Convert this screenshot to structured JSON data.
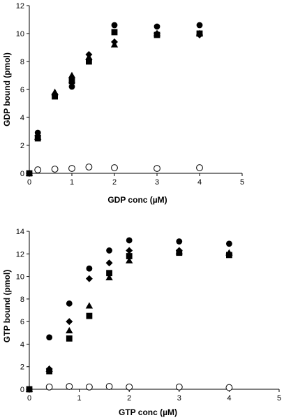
{
  "chart_data": [
    {
      "type": "scatter",
      "xlabel": "GDP conc (µM)",
      "ylabel": "GDP bound (pmol)",
      "xlim": [
        0,
        5
      ],
      "ylim": [
        0,
        12
      ],
      "xticks": [
        0,
        1,
        2,
        3,
        4,
        5
      ],
      "yticks": [
        0,
        2,
        4,
        6,
        8,
        10,
        12
      ],
      "grid": false,
      "series": [
        {
          "marker": "filled-circle",
          "color": "#000000",
          "x": [
            0,
            0.2,
            0.6,
            1.0,
            1.4,
            2.0,
            3.0,
            4.0
          ],
          "y": [
            0,
            2.9,
            5.6,
            6.2,
            8.1,
            10.6,
            10.5,
            10.6
          ]
        },
        {
          "marker": "filled-diamond",
          "color": "#000000",
          "x": [
            0,
            0.2,
            0.6,
            1.0,
            1.4,
            2.0,
            3.0,
            4.0
          ],
          "y": [
            0,
            2.7,
            5.6,
            6.5,
            8.5,
            9.4,
            10.0,
            9.9
          ]
        },
        {
          "marker": "filled-triangle",
          "color": "#000000",
          "x": [
            0,
            0.2,
            0.6,
            1.0,
            1.4,
            2.0,
            3.0,
            4.0
          ],
          "y": [
            0,
            2.6,
            5.8,
            7.0,
            8.3,
            9.2,
            10.0,
            10.0
          ]
        },
        {
          "marker": "filled-square",
          "color": "#000000",
          "x": [
            0,
            0.2,
            0.6,
            1.0,
            1.4,
            2.0,
            3.0,
            4.0
          ],
          "y": [
            0,
            2.5,
            5.5,
            6.6,
            8.0,
            10.1,
            9.9,
            10.0
          ]
        },
        {
          "marker": "open-circle",
          "color": "#000000",
          "x": [
            0.2,
            0.6,
            1.0,
            1.4,
            2.0,
            3.0,
            4.0
          ],
          "y": [
            0.25,
            0.3,
            0.35,
            0.45,
            0.4,
            0.35,
            0.4
          ]
        }
      ]
    },
    {
      "type": "scatter",
      "xlabel": "GTP conc (µM)",
      "ylabel": "GTP bound (pmol)",
      "xlim": [
        0,
        5
      ],
      "ylim": [
        0,
        14
      ],
      "xticks": [
        0,
        1,
        2,
        3,
        4,
        5
      ],
      "yticks": [
        0,
        2,
        4,
        6,
        8,
        10,
        12,
        14
      ],
      "grid": false,
      "series": [
        {
          "marker": "filled-circle",
          "color": "#000000",
          "x": [
            0,
            0.4,
            0.8,
            1.2,
            1.6,
            2.0,
            3.0,
            4.0
          ],
          "y": [
            0,
            4.6,
            7.6,
            10.7,
            12.3,
            13.2,
            13.1,
            12.9
          ]
        },
        {
          "marker": "filled-diamond",
          "color": "#000000",
          "x": [
            0,
            0.4,
            0.8,
            1.2,
            1.6,
            2.0,
            3.0,
            4.0
          ],
          "y": [
            0,
            1.8,
            6.0,
            9.8,
            11.2,
            12.3,
            12.3,
            12.0
          ]
        },
        {
          "marker": "filled-triangle",
          "color": "#000000",
          "x": [
            0,
            0.4,
            0.8,
            1.2,
            1.6,
            2.0,
            3.0,
            4.0
          ],
          "y": [
            0,
            1.8,
            5.2,
            7.4,
            9.9,
            11.4,
            12.2,
            12.1
          ]
        },
        {
          "marker": "filled-square",
          "color": "#000000",
          "x": [
            0,
            0.4,
            0.8,
            1.2,
            1.6,
            2.0,
            3.0,
            4.0
          ],
          "y": [
            0,
            1.6,
            4.5,
            6.5,
            10.3,
            11.8,
            12.1,
            11.9
          ]
        },
        {
          "marker": "open-circle",
          "color": "#000000",
          "x": [
            0.4,
            0.8,
            1.2,
            1.6,
            2.0,
            3.0,
            4.0
          ],
          "y": [
            0.2,
            0.25,
            0.2,
            0.25,
            0.2,
            0.2,
            0.15
          ]
        }
      ]
    }
  ]
}
